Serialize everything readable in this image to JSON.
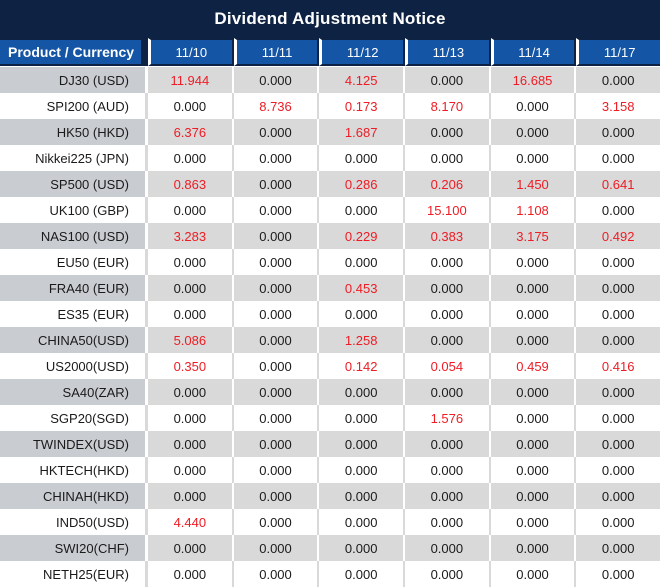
{
  "title": "Dividend Adjustment Notice",
  "table": {
    "product_header": "Product / Currency",
    "date_headers": [
      "11/10",
      "11/11",
      "11/12",
      "11/13",
      "11/14",
      "11/17"
    ],
    "rows": [
      {
        "product": "DJ30 (USD)",
        "values": [
          "11.944",
          "0.000",
          "4.125",
          "0.000",
          "16.685",
          "0.000"
        ]
      },
      {
        "product": "SPI200 (AUD)",
        "values": [
          "0.000",
          "8.736",
          "0.173",
          "8.170",
          "0.000",
          "3.158"
        ]
      },
      {
        "product": "HK50 (HKD)",
        "values": [
          "6.376",
          "0.000",
          "1.687",
          "0.000",
          "0.000",
          "0.000"
        ]
      },
      {
        "product": "Nikkei225 (JPN)",
        "values": [
          "0.000",
          "0.000",
          "0.000",
          "0.000",
          "0.000",
          "0.000"
        ]
      },
      {
        "product": "SP500 (USD)",
        "values": [
          "0.863",
          "0.000",
          "0.286",
          "0.206",
          "1.450",
          "0.641"
        ]
      },
      {
        "product": "UK100 (GBP)",
        "values": [
          "0.000",
          "0.000",
          "0.000",
          "15.100",
          "1.108",
          "0.000"
        ]
      },
      {
        "product": "NAS100 (USD)",
        "values": [
          "3.283",
          "0.000",
          "0.229",
          "0.383",
          "3.175",
          "0.492"
        ]
      },
      {
        "product": "EU50 (EUR)",
        "values": [
          "0.000",
          "0.000",
          "0.000",
          "0.000",
          "0.000",
          "0.000"
        ]
      },
      {
        "product": "FRA40 (EUR)",
        "values": [
          "0.000",
          "0.000",
          "0.453",
          "0.000",
          "0.000",
          "0.000"
        ]
      },
      {
        "product": "ES35 (EUR)",
        "values": [
          "0.000",
          "0.000",
          "0.000",
          "0.000",
          "0.000",
          "0.000"
        ]
      },
      {
        "product": "CHINA50(USD)",
        "values": [
          "5.086",
          "0.000",
          "1.258",
          "0.000",
          "0.000",
          "0.000"
        ]
      },
      {
        "product": "US2000(USD)",
        "values": [
          "0.350",
          "0.000",
          "0.142",
          "0.054",
          "0.459",
          "0.416"
        ]
      },
      {
        "product": "SA40(ZAR)",
        "values": [
          "0.000",
          "0.000",
          "0.000",
          "0.000",
          "0.000",
          "0.000"
        ]
      },
      {
        "product": "SGP20(SGD)",
        "values": [
          "0.000",
          "0.000",
          "0.000",
          "1.576",
          "0.000",
          "0.000"
        ]
      },
      {
        "product": "TWINDEX(USD)",
        "values": [
          "0.000",
          "0.000",
          "0.000",
          "0.000",
          "0.000",
          "0.000"
        ]
      },
      {
        "product": "HKTECH(HKD)",
        "values": [
          "0.000",
          "0.000",
          "0.000",
          "0.000",
          "0.000",
          "0.000"
        ]
      },
      {
        "product": "CHINAH(HKD)",
        "values": [
          "0.000",
          "0.000",
          "0.000",
          "0.000",
          "0.000",
          "0.000"
        ]
      },
      {
        "product": "IND50(USD)",
        "values": [
          "4.440",
          "0.000",
          "0.000",
          "0.000",
          "0.000",
          "0.000"
        ]
      },
      {
        "product": "SWI20(CHF)",
        "values": [
          "0.000",
          "0.000",
          "0.000",
          "0.000",
          "0.000",
          "0.000"
        ]
      },
      {
        "product": "NETH25(EUR)",
        "values": [
          "0.000",
          "0.000",
          "0.000",
          "0.000",
          "0.000",
          "0.000"
        ]
      }
    ]
  },
  "colors": {
    "title_bg": "#0e2243",
    "header_bg": "#1455a5",
    "row_alt_bg": "#d9d9d9",
    "first_col_alt_bg": "#c9ccd1",
    "value_zero": "#1a1a1a",
    "value_nonzero": "#ee1c24"
  }
}
